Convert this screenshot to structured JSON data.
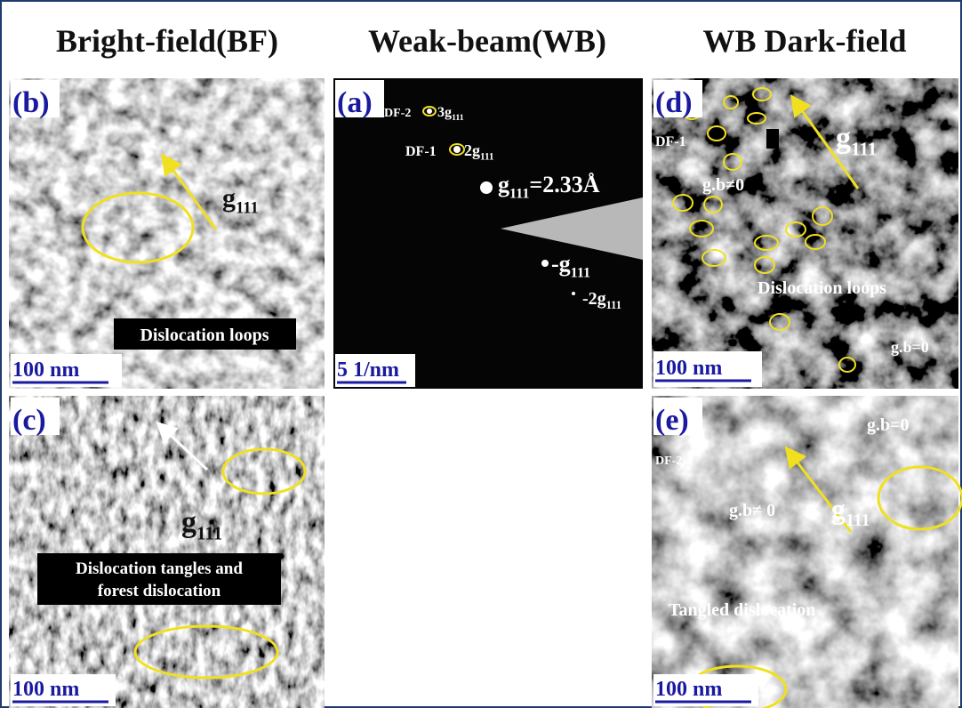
{
  "headers": [
    "Bright-field(BF)",
    "Weak-beam(WB)",
    "WB Dark-field"
  ],
  "panels": {
    "b": {
      "label": "(b)",
      "g": {
        "symbol": "g",
        "subscript": "111"
      },
      "annotation": "Dislocation loops",
      "scale": "100 nm"
    },
    "a": {
      "label": "(a)",
      "df2": "DF-2",
      "spot3": {
        "prefix": "3",
        "symbol": "g",
        "subscript": "111"
      },
      "df1": "DF-1",
      "spot2": {
        "prefix": "2",
        "symbol": "g",
        "subscript": "111"
      },
      "spot1": {
        "symbol": "g",
        "subscript": "111",
        "suffix": "=2.33Å"
      },
      "spotm1": {
        "prefix": "-",
        "symbol": "g",
        "subscript": "111"
      },
      "spotm2": {
        "prefix": "-2",
        "symbol": "g",
        "subscript": "111"
      },
      "scale": "5  1/nm"
    },
    "d": {
      "label": "(d)",
      "df": "DF-1",
      "g": {
        "symbol": "g",
        "subscript": "111"
      },
      "gb_nonzero": "g.b≠0",
      "annotation": "Dislocation loops",
      "gb_zero": "g.b=0",
      "scale": "100 nm"
    },
    "c": {
      "label": "(c)",
      "g": {
        "symbol": "g",
        "subscript": "111"
      },
      "annotation": [
        "Dislocation tangles and",
        "forest dislocation"
      ],
      "scale": "100 nm"
    },
    "e": {
      "label": "(e)",
      "df": "DF-2",
      "gb_zero": "g.b=0",
      "gb_nonzero": "g.b≠ 0",
      "g": {
        "symbol": "g",
        "subscript": "111"
      },
      "annotation": "Tangled dislocation",
      "scale": "100 nm"
    }
  }
}
